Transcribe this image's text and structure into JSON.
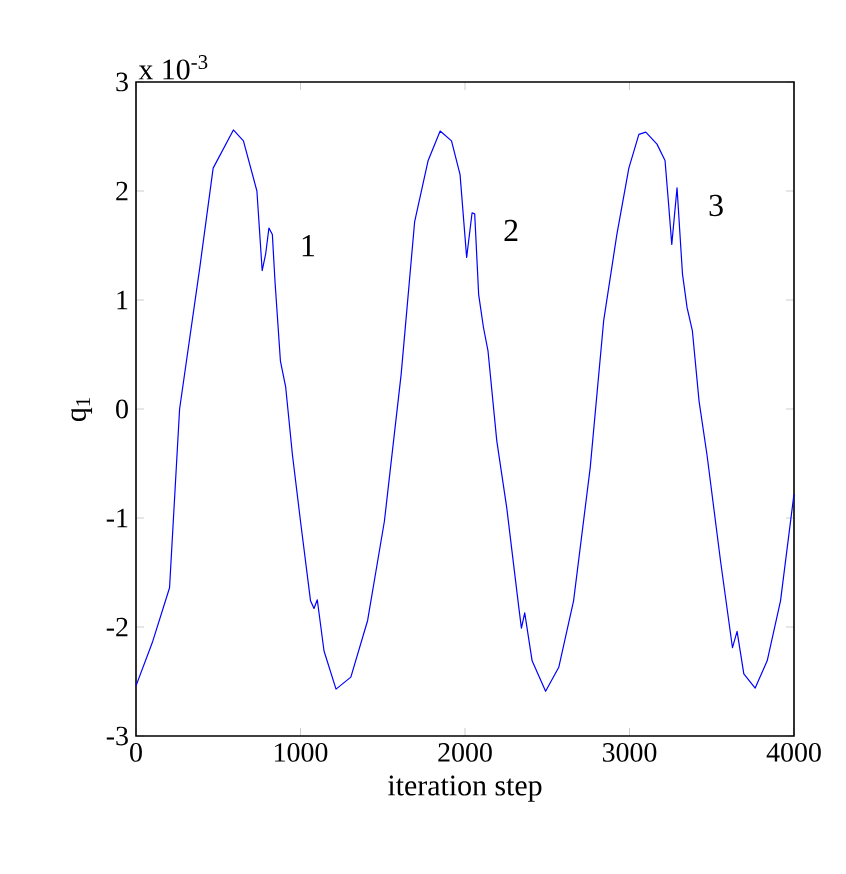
{
  "chart_data": {
    "type": "line",
    "xlabel": "iteration step",
    "ylabel": "q$_{1}$",
    "annotations": [
      {
        "text": "1",
        "x": 808,
        "y": 1.66
      },
      {
        "text": "2",
        "x": 2043,
        "y": 1.8
      },
      {
        "text": "3",
        "x": 3289,
        "y": 2.03
      },
      "x 10$^{-3}$"
    ],
    "xlim": [
      0,
      4000
    ],
    "ylim": [
      -3,
      3
    ],
    "xticks": [
      0,
      1000,
      2000,
      3000,
      4000
    ],
    "yticks": [
      -3,
      -2,
      -1,
      0,
      1,
      2,
      3
    ],
    "grid": false,
    "marker": "none",
    "line_style": "solid",
    "series": [
      {
        "color": "#0000ff",
        "x": [
          0,
          102,
          204,
          265,
          388,
          469,
          592,
          653,
          735,
          767,
          788,
          808,
          829,
          845,
          878,
          910,
          951,
          1000,
          1061,
          1082,
          1102,
          1143,
          1216,
          1306,
          1408,
          1510,
          1612,
          1694,
          1776,
          1849,
          1918,
          1970,
          2010,
          2043,
          2059,
          2083,
          2112,
          2140,
          2193,
          2254,
          2327,
          2343,
          2363,
          2408,
          2490,
          2570,
          2660,
          2761,
          2843,
          2923,
          2996,
          3057,
          3099,
          3167,
          3216,
          3236,
          3257,
          3289,
          3322,
          3350,
          3382,
          3423,
          3471,
          3553,
          3626,
          3654,
          3695,
          3764,
          3837,
          3918,
          4000
        ],
        "values": [
          -2.54,
          -2.13,
          -1.64,
          0,
          1.3,
          2.21,
          2.56,
          2.46,
          2.0,
          1.27,
          1.42,
          1.66,
          1.6,
          1.17,
          0.44,
          0.2,
          -0.42,
          -1.03,
          -1.76,
          -1.83,
          -1.75,
          -2.22,
          -2.57,
          -2.46,
          -1.94,
          -1.03,
          0.32,
          1.72,
          2.28,
          2.55,
          2.46,
          2.15,
          1.39,
          1.8,
          1.79,
          1.05,
          0.75,
          0.53,
          -0.29,
          -0.91,
          -1.82,
          -2.01,
          -1.87,
          -2.31,
          -2.59,
          -2.37,
          -1.76,
          -0.54,
          0.81,
          1.6,
          2.21,
          2.52,
          2.54,
          2.43,
          2.28,
          1.91,
          1.51,
          2.03,
          1.24,
          0.93,
          0.72,
          0.07,
          -0.42,
          -1.39,
          -2.19,
          -2.04,
          -2.43,
          -2.56,
          -2.31,
          -1.76,
          -0.78
        ]
      }
    ]
  }
}
